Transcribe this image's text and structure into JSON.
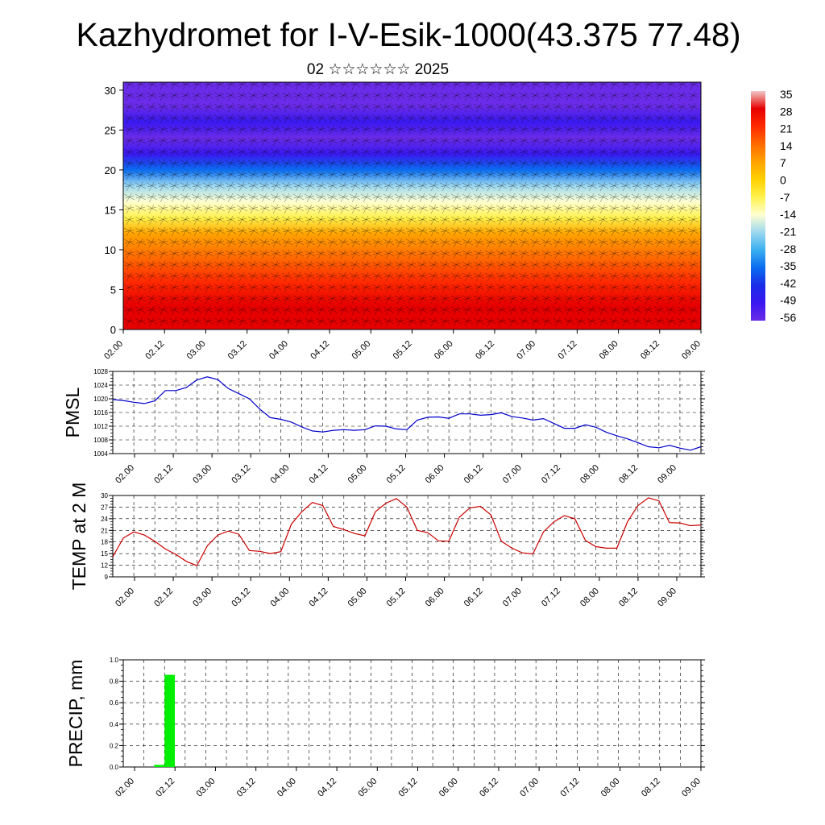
{
  "header": {
    "title": "Kazhydromet for I-V-Esik-1000(43.375 77.48)",
    "subtitle": "02 ☆☆☆☆☆☆ 2025"
  },
  "time_ticks": [
    "02.00",
    "02.12",
    "03.00",
    "03.12",
    "04.00",
    "04.12",
    "05.00",
    "05.12",
    "06.00",
    "06.12",
    "07.00",
    "07.12",
    "08.00",
    "08.12",
    "09.00"
  ],
  "chart_data": [
    {
      "type": "heatmap",
      "name": "cross-section",
      "x_ticks": [
        "02.00",
        "02.12",
        "03.00",
        "03.12",
        "04.00",
        "04.12",
        "05.00",
        "05.12",
        "06.00",
        "06.12",
        "07.00",
        "07.12",
        "08.00",
        "08.12",
        "09.00"
      ],
      "y_ticks": [
        "0",
        "5",
        "10",
        "15",
        "20",
        "25",
        "30"
      ],
      "ylim": [
        0,
        31
      ],
      "colorbar_labels": [
        "35",
        "28",
        "21",
        "14",
        "7",
        "0",
        "-7",
        "-14",
        "-21",
        "-28",
        "-35",
        "-42",
        "-49",
        "-56"
      ],
      "colorbar_colors": [
        "#f2c8c8",
        "#e60000",
        "#ff2a00",
        "#ff6a00",
        "#ffa300",
        "#ffd000",
        "#fff24d",
        "#ffffd0",
        "#9cd8f0",
        "#3ab0f0",
        "#0a6cf0",
        "#1a2ce8",
        "#3a18f0",
        "#6a2ce8"
      ],
      "profile": [
        {
          "h": 0,
          "t": 30
        },
        {
          "h": 3,
          "t": 26
        },
        {
          "h": 6,
          "t": 20
        },
        {
          "h": 9,
          "t": 12
        },
        {
          "h": 12,
          "t": 4
        },
        {
          "h": 14,
          "t": -4
        },
        {
          "h": 16,
          "t": -12
        },
        {
          "h": 18,
          "t": -22
        },
        {
          "h": 20,
          "t": -34
        },
        {
          "h": 22,
          "t": -46
        },
        {
          "h": 24,
          "t": -56
        },
        {
          "h": 26,
          "t": -52
        },
        {
          "h": 28,
          "t": -60
        },
        {
          "h": 31,
          "t": -64
        }
      ]
    },
    {
      "type": "line",
      "name": "pmsl",
      "ylabel": "PMSL",
      "ylim": [
        1004,
        1028
      ],
      "y_ticks": [
        "1004",
        "1008",
        "1012",
        "1016",
        "1020",
        "1024",
        "1028"
      ],
      "x_ticks": [
        "02.00",
        "02.12",
        "03.00",
        "03.12",
        "04.00",
        "04.12",
        "05.00",
        "05.12",
        "06.00",
        "06.12",
        "07.00",
        "07.12",
        "08.00",
        "08.12",
        "09.00"
      ],
      "color": "#0000cc",
      "x": [
        0,
        3,
        6,
        9,
        12,
        15,
        18,
        21,
        24,
        27,
        30,
        33,
        36,
        39,
        42,
        45,
        48,
        51,
        54,
        57,
        60,
        63,
        66,
        69,
        72,
        75,
        78,
        81,
        84,
        87,
        90,
        93,
        96,
        99,
        102,
        105,
        108,
        111,
        114,
        117,
        120,
        123,
        126,
        129,
        132,
        135,
        138,
        141,
        144,
        147,
        150,
        153,
        156,
        159,
        162,
        165,
        168
      ],
      "values": [
        1019.8,
        1019.5,
        1019.0,
        1018.6,
        1019.4,
        1022.4,
        1022.4,
        1023.3,
        1025.5,
        1026.4,
        1025.6,
        1023.0,
        1021.5,
        1020.0,
        1017.0,
        1014.5,
        1014.0,
        1013.2,
        1011.8,
        1010.6,
        1010.3,
        1010.8,
        1011.0,
        1010.8,
        1011.0,
        1012.1,
        1012.0,
        1011.2,
        1011.0,
        1013.8,
        1014.6,
        1014.7,
        1014.3,
        1015.6,
        1015.6,
        1015.2,
        1015.4,
        1015.9,
        1014.8,
        1014.4,
        1013.8,
        1014.2,
        1012.8,
        1011.4,
        1011.4,
        1012.4,
        1011.7,
        1010.2,
        1009.2,
        1008.3,
        1007.2,
        1006.0,
        1005.7,
        1006.4,
        1005.6,
        1005.0,
        1006.0
      ]
    },
    {
      "type": "line",
      "name": "temp",
      "ylabel": "TEMP at 2 M",
      "ylim": [
        9,
        30
      ],
      "y_ticks": [
        "9",
        "12",
        "15",
        "18",
        "21",
        "24",
        "27",
        "30"
      ],
      "x_ticks": [
        "02.00",
        "02.12",
        "03.00",
        "03.12",
        "04.00",
        "04.12",
        "05.00",
        "05.12",
        "06.00",
        "06.12",
        "07.00",
        "07.12",
        "08.00",
        "08.12",
        "09.00"
      ],
      "color": "#cc0000",
      "x": [
        0,
        3,
        6,
        9,
        12,
        15,
        18,
        21,
        24,
        27,
        30,
        33,
        36,
        39,
        42,
        45,
        48,
        51,
        54,
        57,
        60,
        63,
        66,
        69,
        72,
        75,
        78,
        81,
        84,
        87,
        90,
        93,
        96,
        99,
        102,
        105,
        108,
        111,
        114,
        117,
        120,
        123,
        126,
        129,
        132,
        135,
        138,
        141,
        144,
        147,
        150,
        153,
        156,
        159,
        162,
        165,
        168
      ],
      "values": [
        14.2,
        19.0,
        20.6,
        19.8,
        18.2,
        16.2,
        14.8,
        13.0,
        11.9,
        17.0,
        19.8,
        20.8,
        20.0,
        15.8,
        15.6,
        15.0,
        15.5,
        22.6,
        25.8,
        28.2,
        27.4,
        22.0,
        21.2,
        20.2,
        19.6,
        25.8,
        28.0,
        29.2,
        27.0,
        21.0,
        20.4,
        18.3,
        18.2,
        24.4,
        26.8,
        27.2,
        25.0,
        18.2,
        16.4,
        15.2,
        14.9,
        20.6,
        23.2,
        24.8,
        24.0,
        18.4,
        16.8,
        16.4,
        16.4,
        23.2,
        27.4,
        29.4,
        28.6,
        23.0,
        22.9,
        22.2,
        22.4
      ]
    },
    {
      "type": "bar",
      "name": "precip",
      "ylabel": "PRECIP, mm",
      "ylim": [
        0,
        1.0
      ],
      "y_ticks": [
        "0.0",
        "0.2",
        "0.4",
        "0.6",
        "0.8",
        "1.0"
      ],
      "x_ticks": [
        "02.00",
        "02.12",
        "03.00",
        "03.12",
        "04.00",
        "04.12",
        "05.00",
        "05.12",
        "06.00",
        "06.12",
        "07.00",
        "07.12",
        "08.00",
        "08.12",
        "09.00"
      ],
      "color": "#00ee00",
      "bars": [
        {
          "x_start": 9,
          "x_end": 12,
          "value": 0.02
        },
        {
          "x_start": 12,
          "x_end": 15,
          "value": 0.86
        }
      ]
    }
  ]
}
